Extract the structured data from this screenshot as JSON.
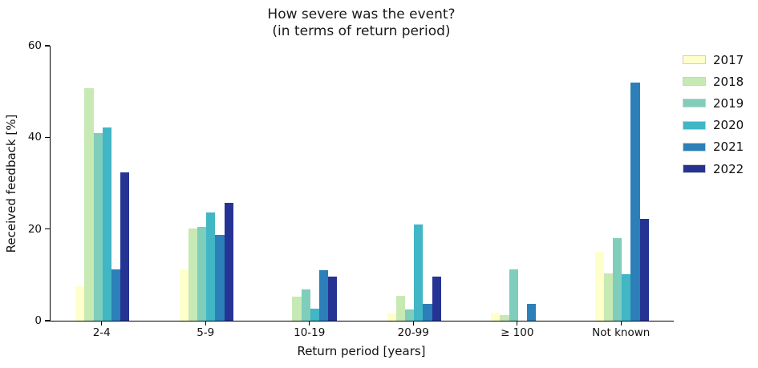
{
  "figure": {
    "title_line1": "How severe was the event?",
    "title_line2": "(in terms of return period)"
  },
  "chart_data": {
    "type": "bar",
    "title": "How severe was the event?\n(in terms of return period)",
    "xlabel": "Return period [years]",
    "ylabel": "Received feedback [%]",
    "ylim": [
      0,
      60
    ],
    "yticks": [
      0,
      20,
      40,
      60
    ],
    "grid": false,
    "legend_position": "outside upper right",
    "categories": [
      "2-4",
      "5-9",
      "10-19",
      "20-99",
      "≥ 100",
      "Not known"
    ],
    "series": [
      {
        "name": "2017",
        "color": "#ffffcc",
        "values": [
          7.5,
          11.2,
          0,
          1.7,
          1.7,
          15.0
        ]
      },
      {
        "name": "2018",
        "color": "#c7e9b4",
        "values": [
          50.8,
          20.1,
          5.3,
          5.4,
          1.2,
          10.4
        ]
      },
      {
        "name": "2019",
        "color": "#7fcdbb",
        "values": [
          40.9,
          20.5,
          6.8,
          2.4,
          11.2,
          18.0
        ]
      },
      {
        "name": "2020",
        "color": "#41b6c4",
        "values": [
          42.2,
          23.7,
          2.6,
          21.0,
          0,
          10.2
        ]
      },
      {
        "name": "2021",
        "color": "#2c7fb8",
        "values": [
          11.2,
          18.7,
          11.1,
          3.7,
          3.6,
          51.9
        ]
      },
      {
        "name": "2022",
        "color": "#253494",
        "values": [
          32.4,
          25.8,
          9.6,
          9.6,
          0,
          22.3
        ]
      }
    ]
  }
}
